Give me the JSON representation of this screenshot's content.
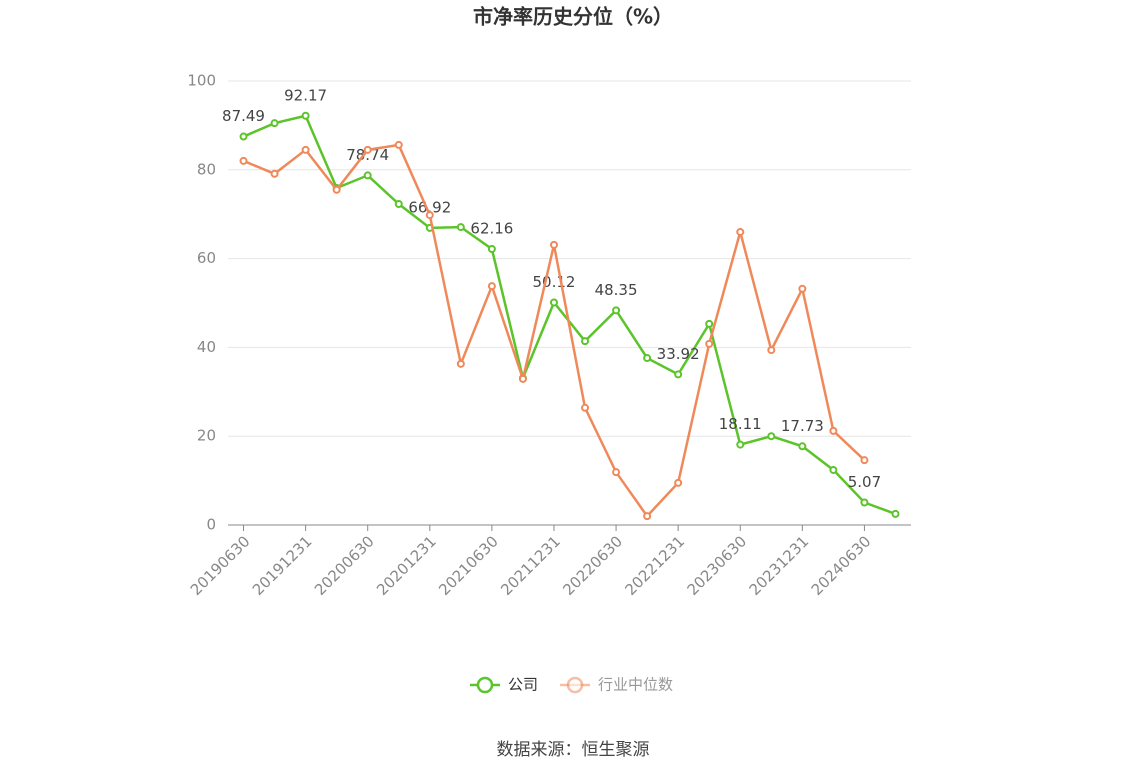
{
  "chart_data": {
    "type": "line",
    "title": "市净率历史分位（%）",
    "source": "数据来源：恒生聚源",
    "categories": [
      "20190630",
      null,
      "20191231",
      null,
      "20200630",
      null,
      "20201231",
      null,
      "20210630",
      null,
      "20211231",
      null,
      "20220630",
      null,
      "20221231",
      null,
      "20230630",
      null,
      "20231231",
      null,
      "20240630",
      null
    ],
    "series": [
      {
        "name": "公司",
        "color": "#5bc42a",
        "values": [
          87.49,
          90.5,
          92.17,
          75.9,
          78.74,
          72.3,
          66.92,
          67.1,
          62.16,
          33.1,
          50.12,
          41.4,
          48.35,
          37.6,
          33.92,
          45.3,
          18.11,
          20.0,
          17.73,
          12.4,
          5.07,
          2.5
        ],
        "value_labels": [
          "87.49",
          null,
          "92.17",
          null,
          "78.74",
          null,
          "66.92",
          null,
          "62.16",
          null,
          "50.12",
          null,
          "48.35",
          null,
          "33.92",
          null,
          "18.11",
          null,
          "17.73",
          null,
          "5.07",
          null
        ]
      },
      {
        "name": "行业中位数",
        "color": "#f0895a",
        "values": [
          82.0,
          79.1,
          84.5,
          75.5,
          84.5,
          85.6,
          69.8,
          36.3,
          53.8,
          32.9,
          63.1,
          26.4,
          11.9,
          2.0,
          9.5,
          40.8,
          66.0,
          39.4,
          53.2,
          21.2,
          14.6,
          null
        ]
      }
    ],
    "ylim": [
      0,
      100
    ],
    "yticks": [
      0,
      20,
      40,
      60,
      80,
      100
    ],
    "grid": true,
    "legend": "bottom"
  }
}
